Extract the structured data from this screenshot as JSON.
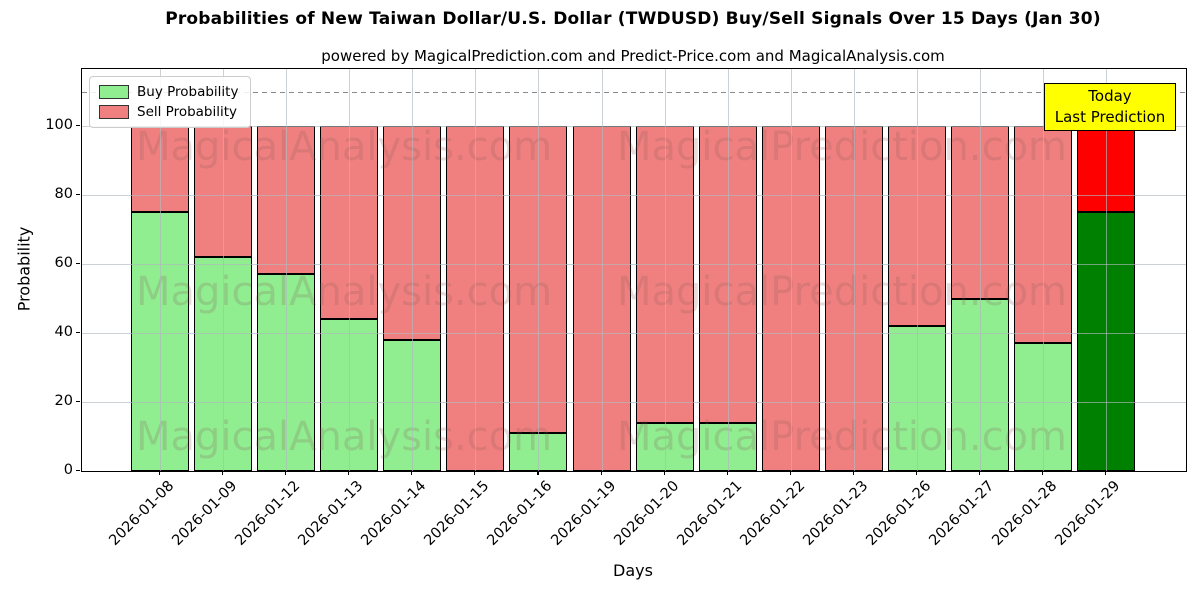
{
  "title": "Probabilities of New Taiwan Dollar/U.S. Dollar (TWDUSD) Buy/Sell Signals Over 15 Days (Jan 30)",
  "subtitle": "powered by MagicalPrediction.com and Predict-Price.com and MagicalAnalysis.com",
  "axes": {
    "ylabel": "Probability",
    "xlabel": "Days",
    "yticks": [
      0,
      20,
      40,
      60,
      80,
      100
    ],
    "ylim": [
      0,
      116.5
    ],
    "dashed_guide_y": 110,
    "grid": true
  },
  "legend": {
    "position": "upper left",
    "items": [
      {
        "label": "Buy Probability",
        "color": "#90ee90"
      },
      {
        "label": "Sell Probability",
        "color": "#f08080"
      }
    ]
  },
  "annotation_box": {
    "line1": "Today",
    "line2": "Last Prediction",
    "bg_color": "#ffff00",
    "border_color": "#000000"
  },
  "watermarks": {
    "left_text": "MagicalAnalysis.com",
    "right_text": "MagicalPrediction.com",
    "rows": 3,
    "color": "#885555"
  },
  "colors": {
    "buy": "#90ee90",
    "sell": "#f08080",
    "today_buy": "#008000",
    "today_sell": "#ff0000",
    "bar_edge": "#000000",
    "grid": "#b0b8be",
    "dashed_guide": "#8a8a8a",
    "background": "#ffffff"
  },
  "chart_data": {
    "type": "bar",
    "stacked": true,
    "title": "Probabilities of New Taiwan Dollar/U.S. Dollar (TWDUSD) Buy/Sell Signals Over 15 Days (Jan 30)",
    "xlabel": "Days",
    "ylabel": "Probability",
    "ylim": [
      0,
      116.5
    ],
    "grid": true,
    "legend_position": "upper left",
    "categories": [
      "2026-01-08",
      "2026-01-09",
      "2026-01-12",
      "2026-01-13",
      "2026-01-14",
      "2026-01-15",
      "2026-01-16",
      "2026-01-19",
      "2026-01-20",
      "2026-01-21",
      "2026-01-22",
      "2026-01-23",
      "2026-01-26",
      "2026-01-27",
      "2026-01-28",
      "2026-01-29"
    ],
    "series": [
      {
        "name": "Buy Probability",
        "values": [
          75,
          62,
          57,
          44,
          38,
          0,
          11,
          0,
          14,
          14,
          0,
          0,
          42,
          50,
          37,
          75
        ]
      },
      {
        "name": "Sell Probability",
        "values": [
          25,
          38,
          43,
          56,
          62,
          100,
          89,
          100,
          86,
          86,
          100,
          100,
          58,
          50,
          63,
          25
        ]
      }
    ],
    "highlight_index": 15,
    "highlight_label": "Today / Last Prediction"
  }
}
